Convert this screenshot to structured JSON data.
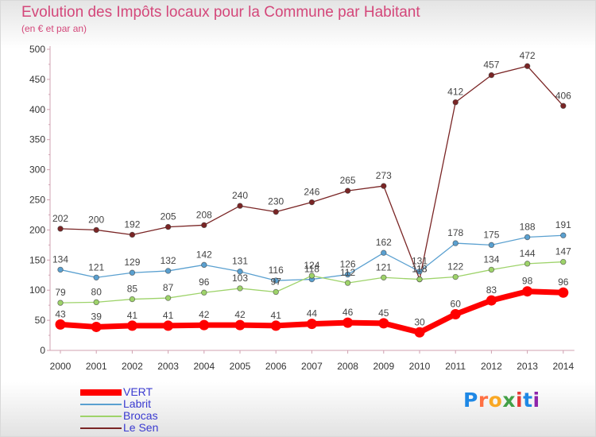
{
  "title": "Evolution des Impôts locaux pour la Commune par Habitant",
  "subtitle": "(en € et par an)",
  "logo": {
    "text": "Proxiti",
    "colors": [
      "#1e88e5",
      "#ff7043",
      "#f9a825",
      "#43a047",
      "#e53935",
      "#1e88e5",
      "#8e24aa"
    ]
  },
  "chart_data": {
    "type": "line",
    "x": [
      "2000",
      "2001",
      "2002",
      "2003",
      "2004",
      "2005",
      "2006",
      "2007",
      "2008",
      "2009",
      "2010",
      "2011",
      "2012",
      "2013",
      "2014"
    ],
    "ylim": [
      0,
      500
    ],
    "yticks": [
      "0",
      "50",
      "100",
      "150",
      "200",
      "250",
      "300",
      "350",
      "400",
      "450",
      "500"
    ],
    "grid": false,
    "legend_position": "bottom-left",
    "series": [
      {
        "name": "Le Sen",
        "color": "#7a2525",
        "values": [
          202,
          200,
          192,
          205,
          208,
          240,
          230,
          246,
          265,
          273,
          118,
          412,
          457,
          472,
          406
        ]
      },
      {
        "name": "Labrit",
        "color": "#5aa0d0",
        "values": [
          134,
          121,
          129,
          132,
          142,
          131,
          116,
          118,
          126,
          162,
          131,
          178,
          175,
          188,
          191
        ]
      },
      {
        "name": "Brocas",
        "color": "#9ed36a",
        "values": [
          79,
          80,
          85,
          87,
          96,
          103,
          97,
          124,
          112,
          121,
          118,
          122,
          134,
          144,
          147
        ]
      },
      {
        "name": "VERT",
        "color": "#ff0000",
        "values": [
          43,
          39,
          41,
          41,
          42,
          42,
          41,
          44,
          46,
          45,
          30,
          60,
          83,
          98,
          96
        ]
      }
    ],
    "legend_order": [
      "VERT",
      "Labrit",
      "Brocas",
      "Le Sen"
    ]
  }
}
